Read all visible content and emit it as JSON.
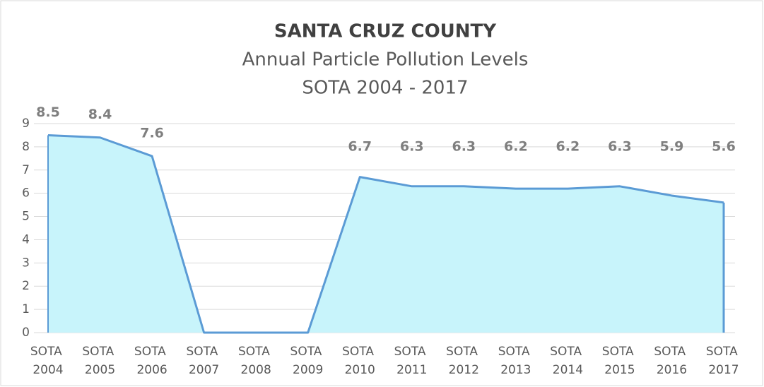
{
  "chart_data": {
    "type": "area",
    "title": "SANTA CRUZ COUNTY",
    "subtitle": [
      "Annual Particle Pollution Levels",
      "SOTA 2004 - 2017"
    ],
    "categories": [
      "SOTA 2004",
      "SOTA 2005",
      "SOTA 2006",
      "SOTA 2007",
      "SOTA 2008",
      "SOTA 2009",
      "SOTA 2010",
      "SOTA 2011",
      "SOTA 2012",
      "SOTA 2013",
      "SOTA 2014",
      "SOTA 2015",
      "SOTA 2016",
      "SOTA 2017"
    ],
    "values": [
      8.5,
      8.4,
      7.6,
      0,
      0,
      0,
      6.7,
      6.3,
      6.3,
      6.2,
      6.2,
      6.3,
      5.9,
      5.6
    ],
    "value_labels": [
      "8.5",
      "8.4",
      "7.6",
      null,
      null,
      null,
      "6.7",
      "6.3",
      "6.3",
      "6.2",
      "6.2",
      "6.3",
      "5.9",
      "5.6"
    ],
    "color": "#5b9bd5",
    "fill": "#c8f4fb",
    "ylim": [
      0,
      9
    ],
    "yticks": [
      0,
      1,
      2,
      3,
      4,
      5,
      6,
      7,
      8,
      9
    ],
    "grid": true
  }
}
